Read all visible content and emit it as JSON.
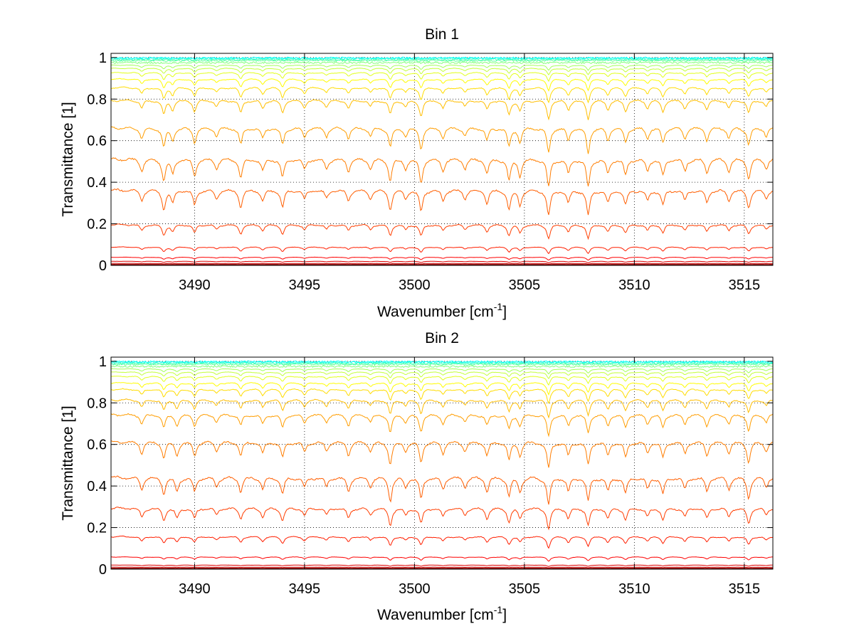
{
  "chart_data": [
    {
      "type": "line",
      "title": "Bin 1",
      "xlabel": "Wavenumber [cm",
      "xlabel_sup": "-1",
      "xlabel_tail": "]",
      "ylabel": "Transmittance [1]",
      "xlim": [
        3486.2,
        3516.3
      ],
      "ylim": [
        0,
        1.02
      ],
      "xticks": [
        3490,
        3495,
        3500,
        3505,
        3510,
        3515
      ],
      "yticks": [
        0,
        0.2,
        0.4,
        0.6,
        0.8,
        1
      ],
      "grid": true,
      "colormap": "jet",
      "series_baselines": [
        0.002,
        0.005,
        0.01,
        0.02,
        0.04,
        0.09,
        0.2,
        0.37,
        0.52,
        0.67,
        0.8,
        0.86,
        0.9,
        0.93,
        0.95,
        0.965,
        0.975,
        0.985,
        0.99,
        0.995,
        0.998
      ],
      "absorption_lines": [
        {
          "x": 3487.6,
          "depth": 0.25
        },
        {
          "x": 3488.6,
          "depth": 0.45
        },
        {
          "x": 3489.0,
          "depth": 0.3
        },
        {
          "x": 3490.0,
          "depth": 0.35
        },
        {
          "x": 3491.0,
          "depth": 0.2
        },
        {
          "x": 3492.1,
          "depth": 0.4
        },
        {
          "x": 3493.1,
          "depth": 0.25
        },
        {
          "x": 3494.0,
          "depth": 0.4
        },
        {
          "x": 3495.0,
          "depth": 0.22
        },
        {
          "x": 3496.0,
          "depth": 0.2
        },
        {
          "x": 3497.0,
          "depth": 0.25
        },
        {
          "x": 3498.0,
          "depth": 0.2
        },
        {
          "x": 3498.9,
          "depth": 0.45
        },
        {
          "x": 3499.6,
          "depth": 0.2
        },
        {
          "x": 3500.3,
          "depth": 0.5
        },
        {
          "x": 3501.3,
          "depth": 0.25
        },
        {
          "x": 3502.3,
          "depth": 0.2
        },
        {
          "x": 3503.3,
          "depth": 0.3
        },
        {
          "x": 3504.3,
          "depth": 0.45
        },
        {
          "x": 3504.8,
          "depth": 0.35
        },
        {
          "x": 3506.1,
          "depth": 0.6
        },
        {
          "x": 3507.0,
          "depth": 0.3
        },
        {
          "x": 3507.9,
          "depth": 0.6
        },
        {
          "x": 3508.8,
          "depth": 0.3
        },
        {
          "x": 3509.6,
          "depth": 0.35
        },
        {
          "x": 3510.6,
          "depth": 0.25
        },
        {
          "x": 3511.3,
          "depth": 0.35
        },
        {
          "x": 3512.3,
          "depth": 0.25
        },
        {
          "x": 3513.3,
          "depth": 0.3
        },
        {
          "x": 3514.3,
          "depth": 0.25
        },
        {
          "x": 3515.2,
          "depth": 0.4
        },
        {
          "x": 3516.0,
          "depth": 0.2
        }
      ]
    },
    {
      "type": "line",
      "title": "Bin 2",
      "xlabel": "Wavenumber [cm",
      "xlabel_sup": "-1",
      "xlabel_tail": "]",
      "ylabel": "Transmittance [1]",
      "xlim": [
        3486.2,
        3516.3
      ],
      "ylim": [
        0,
        1.02
      ],
      "xticks": [
        3490,
        3495,
        3500,
        3505,
        3510,
        3515
      ],
      "yticks": [
        0,
        0.2,
        0.4,
        0.6,
        0.8,
        1
      ],
      "grid": true,
      "colormap": "jet",
      "series_baselines": [
        0.002,
        0.005,
        0.01,
        0.02,
        0.06,
        0.16,
        0.3,
        0.45,
        0.62,
        0.75,
        0.82,
        0.87,
        0.9,
        0.93,
        0.95,
        0.965,
        0.975,
        0.985,
        0.99,
        0.995,
        0.998
      ],
      "absorption_lines": [
        {
          "x": 3487.6,
          "depth": 0.25
        },
        {
          "x": 3488.6,
          "depth": 0.35
        },
        {
          "x": 3489.2,
          "depth": 0.3
        },
        {
          "x": 3490.0,
          "depth": 0.3
        },
        {
          "x": 3491.0,
          "depth": 0.2
        },
        {
          "x": 3492.1,
          "depth": 0.3
        },
        {
          "x": 3493.1,
          "depth": 0.25
        },
        {
          "x": 3494.0,
          "depth": 0.35
        },
        {
          "x": 3495.0,
          "depth": 0.22
        },
        {
          "x": 3496.0,
          "depth": 0.2
        },
        {
          "x": 3497.0,
          "depth": 0.3
        },
        {
          "x": 3498.0,
          "depth": 0.2
        },
        {
          "x": 3498.9,
          "depth": 0.5
        },
        {
          "x": 3499.6,
          "depth": 0.2
        },
        {
          "x": 3500.3,
          "depth": 0.45
        },
        {
          "x": 3501.3,
          "depth": 0.25
        },
        {
          "x": 3502.3,
          "depth": 0.2
        },
        {
          "x": 3503.3,
          "depth": 0.3
        },
        {
          "x": 3504.3,
          "depth": 0.4
        },
        {
          "x": 3504.8,
          "depth": 0.3
        },
        {
          "x": 3506.1,
          "depth": 0.6
        },
        {
          "x": 3507.0,
          "depth": 0.3
        },
        {
          "x": 3507.9,
          "depth": 0.5
        },
        {
          "x": 3508.8,
          "depth": 0.3
        },
        {
          "x": 3509.6,
          "depth": 0.35
        },
        {
          "x": 3510.6,
          "depth": 0.25
        },
        {
          "x": 3511.3,
          "depth": 0.35
        },
        {
          "x": 3512.3,
          "depth": 0.25
        },
        {
          "x": 3513.3,
          "depth": 0.3
        },
        {
          "x": 3514.3,
          "depth": 0.25
        },
        {
          "x": 3515.2,
          "depth": 0.45
        },
        {
          "x": 3516.0,
          "depth": 0.2
        }
      ]
    }
  ]
}
